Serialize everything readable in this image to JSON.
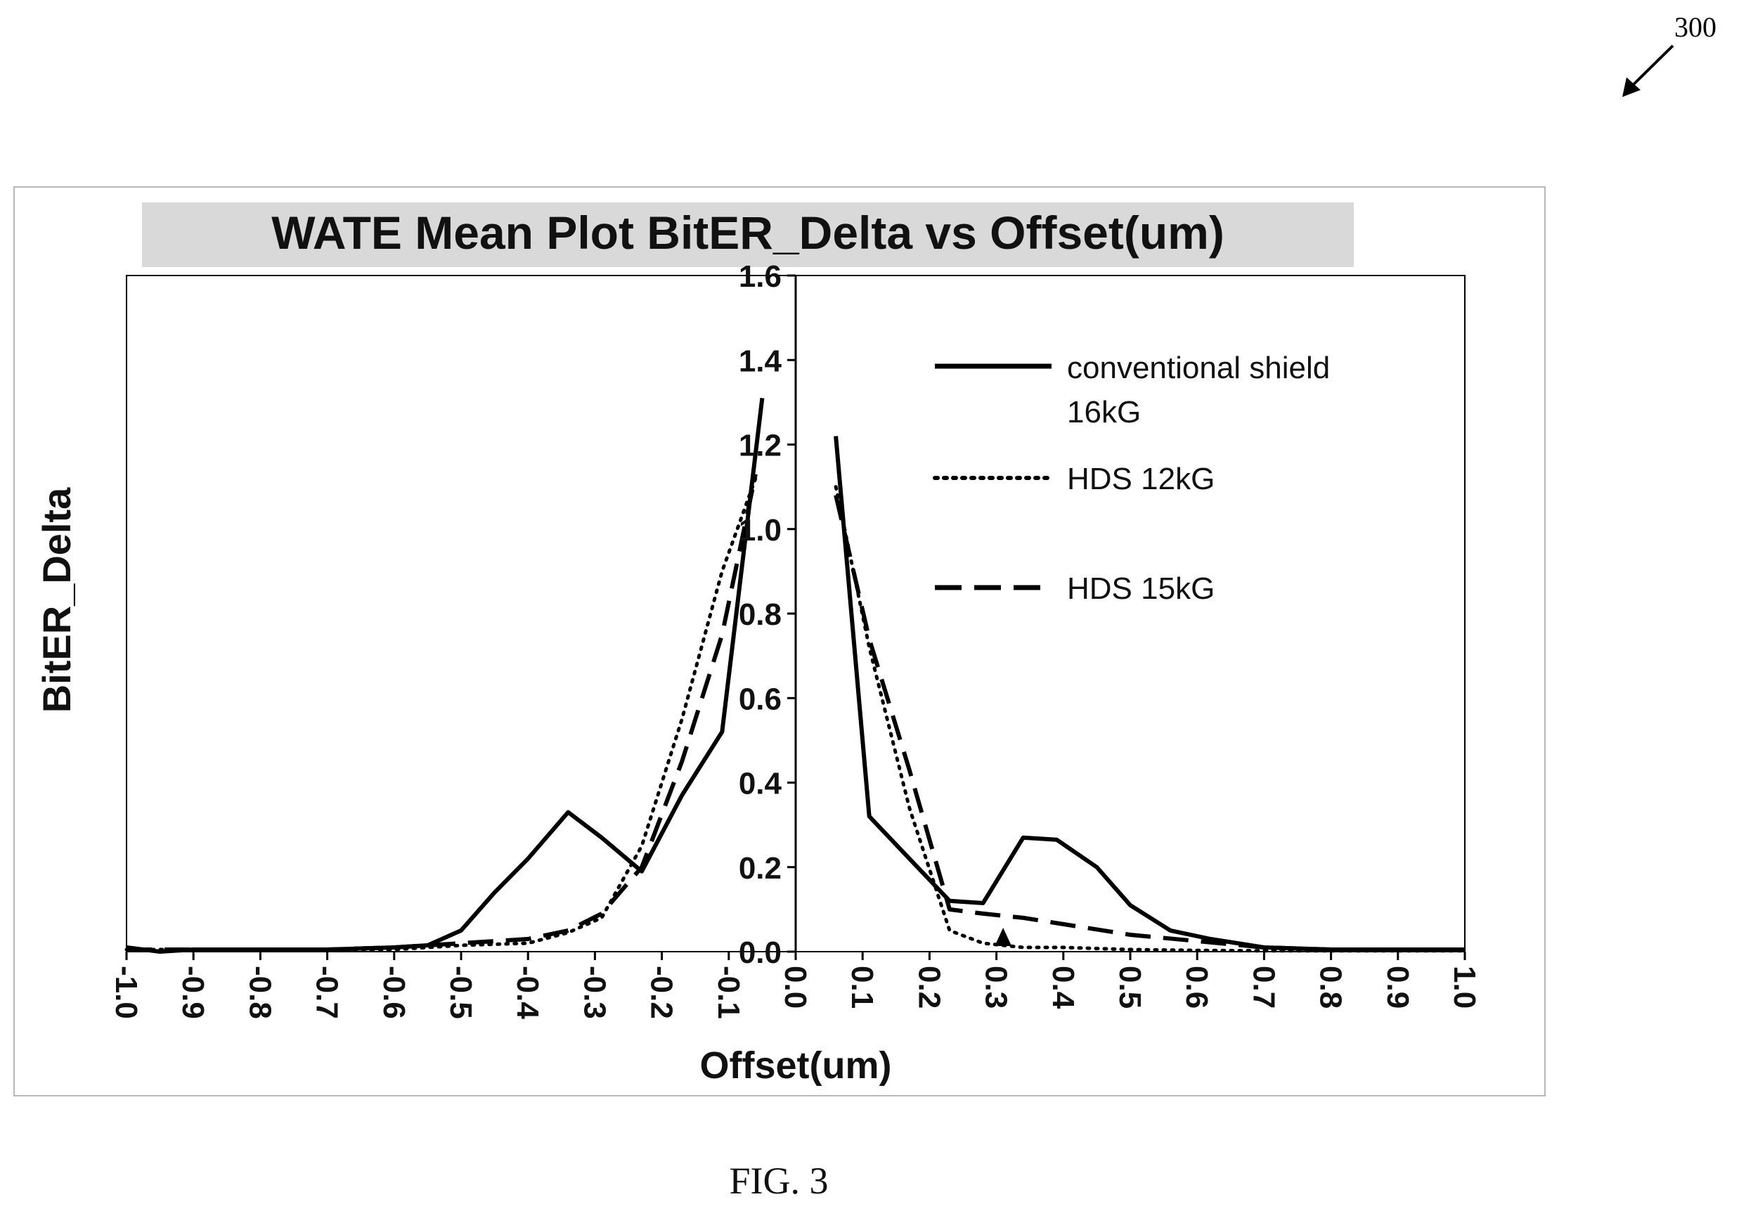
{
  "figure": {
    "ref_number": "300",
    "caption": "FIG. 3"
  },
  "chart_data": {
    "type": "line",
    "title": "WATE Mean Plot  BitER_Delta vs Offset(um)",
    "xlabel": "Offset(um)",
    "ylabel": "BitER_Delta",
    "xlim": [
      -1.0,
      1.0
    ],
    "ylim": [
      0.0,
      1.6
    ],
    "xticks": [
      "-1.0",
      "-0.9",
      "-0.8",
      "-0.7",
      "-0.6",
      "-0.5",
      "-0.4",
      "-0.3",
      "-0.2",
      "-0.1",
      "0.0",
      "0.1",
      "0.2",
      "0.3",
      "0.4",
      "0.5",
      "0.6",
      "0.7",
      "0.8",
      "0.9",
      "1.0"
    ],
    "yticks": [
      "0.0",
      "0.2",
      "0.4",
      "0.6",
      "0.8",
      "1.0",
      "1.2",
      "1.4",
      "1.6"
    ],
    "grid": false,
    "legend_position": "top-right",
    "series": [
      {
        "name": "conventional shield 16kG",
        "style": "solid",
        "color": "#000000",
        "points": [
          [
            -1.0,
            0.01
          ],
          [
            -0.95,
            0.0
          ],
          [
            -0.9,
            0.005
          ],
          [
            -0.8,
            0.005
          ],
          [
            -0.7,
            0.005
          ],
          [
            -0.6,
            0.01
          ],
          [
            -0.55,
            0.015
          ],
          [
            -0.5,
            0.05
          ],
          [
            -0.45,
            0.14
          ],
          [
            -0.4,
            0.22
          ],
          [
            -0.34,
            0.33
          ],
          [
            -0.29,
            0.27
          ],
          [
            -0.23,
            0.19
          ],
          [
            -0.17,
            0.37
          ],
          [
            -0.11,
            0.52
          ],
          [
            -0.05,
            1.31
          ],
          [
            0.06,
            1.22
          ],
          [
            0.11,
            0.32
          ],
          [
            0.17,
            0.22
          ],
          [
            0.23,
            0.12
          ],
          [
            0.28,
            0.115
          ],
          [
            0.34,
            0.27
          ],
          [
            0.39,
            0.265
          ],
          [
            0.45,
            0.2
          ],
          [
            0.5,
            0.11
          ],
          [
            0.56,
            0.05
          ],
          [
            0.62,
            0.03
          ],
          [
            0.7,
            0.01
          ],
          [
            0.8,
            0.005
          ],
          [
            0.9,
            0.005
          ],
          [
            1.0,
            0.005
          ]
        ]
      },
      {
        "name": "HDS 12kG",
        "style": "dotted",
        "color": "#000000",
        "points": [
          [
            -1.0,
            0.005
          ],
          [
            -0.9,
            0.005
          ],
          [
            -0.8,
            0.005
          ],
          [
            -0.7,
            0.005
          ],
          [
            -0.6,
            0.005
          ],
          [
            -0.5,
            0.015
          ],
          [
            -0.4,
            0.02
          ],
          [
            -0.34,
            0.045
          ],
          [
            -0.29,
            0.08
          ],
          [
            -0.23,
            0.25
          ],
          [
            -0.17,
            0.55
          ],
          [
            -0.11,
            0.9
          ],
          [
            -0.06,
            1.12
          ],
          [
            0.06,
            1.1
          ],
          [
            0.11,
            0.72
          ],
          [
            0.17,
            0.34
          ],
          [
            0.23,
            0.05
          ],
          [
            0.28,
            0.02
          ],
          [
            0.34,
            0.01
          ],
          [
            0.4,
            0.01
          ],
          [
            0.5,
            0.005
          ],
          [
            0.6,
            0.003
          ],
          [
            0.7,
            0.002
          ],
          [
            0.8,
            0.002
          ],
          [
            0.9,
            0.002
          ],
          [
            1.0,
            0.002
          ]
        ]
      },
      {
        "name": "HDS 15kG",
        "style": "dashed",
        "color": "#000000",
        "points": [
          [
            -1.0,
            0.005
          ],
          [
            -0.9,
            0.005
          ],
          [
            -0.8,
            0.005
          ],
          [
            -0.7,
            0.005
          ],
          [
            -0.6,
            0.01
          ],
          [
            -0.5,
            0.02
          ],
          [
            -0.4,
            0.03
          ],
          [
            -0.34,
            0.05
          ],
          [
            -0.29,
            0.09
          ],
          [
            -0.23,
            0.2
          ],
          [
            -0.17,
            0.45
          ],
          [
            -0.11,
            0.75
          ],
          [
            -0.06,
            1.13
          ],
          [
            0.06,
            1.08
          ],
          [
            0.11,
            0.74
          ],
          [
            0.17,
            0.43
          ],
          [
            0.23,
            0.1
          ],
          [
            0.28,
            0.09
          ],
          [
            0.34,
            0.08
          ],
          [
            0.4,
            0.065
          ],
          [
            0.5,
            0.04
          ],
          [
            0.6,
            0.025
          ],
          [
            0.7,
            0.01
          ],
          [
            0.8,
            0.005
          ],
          [
            0.9,
            0.005
          ],
          [
            1.0,
            0.005
          ]
        ]
      }
    ],
    "annotations": [
      {
        "type": "triangle-marker",
        "x": 0.31,
        "y": 0.02
      }
    ]
  }
}
